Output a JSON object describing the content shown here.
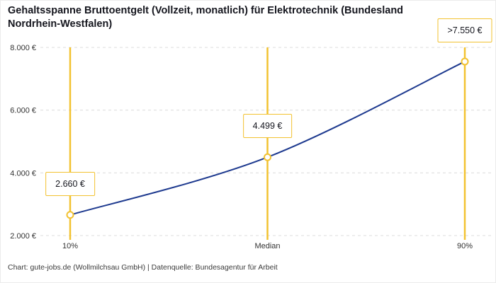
{
  "header": {
    "title": "Gehaltsspanne Bruttoentgelt (Vollzeit, monatlich) für Elektrotechnik (Bundesland\nNordrhein-Westfalen)"
  },
  "footer": {
    "credit": "Chart: gute-jobs.de (Wollmilchsau GmbH) | Datenquelle: Bundesagentur für Arbeit"
  },
  "chart_data": {
    "type": "line",
    "title": "Gehaltsspanne Bruttoentgelt (Vollzeit, monatlich) für Elektrotechnik (Bundesland Nordrhein-Westfalen)",
    "categories": [
      "10%",
      "Median",
      "90%"
    ],
    "values": [
      2660,
      4499,
      7550
    ],
    "point_labels": [
      "2.660 €",
      "4.499 €",
      ">7.550 €"
    ],
    "ylim": [
      2000,
      8000
    ],
    "yticks": [
      2000,
      4000,
      6000,
      8000
    ],
    "ytick_labels": [
      "2.000 €",
      "4.000 €",
      "6.000 €",
      "8.000 €"
    ],
    "grid": true,
    "legend_position": "none",
    "xlabel": "",
    "ylabel": "",
    "colors": {
      "line": "#1e3a8f",
      "accent": "#f2c230",
      "grid": "#dcdcdc",
      "text": "#333333"
    }
  }
}
